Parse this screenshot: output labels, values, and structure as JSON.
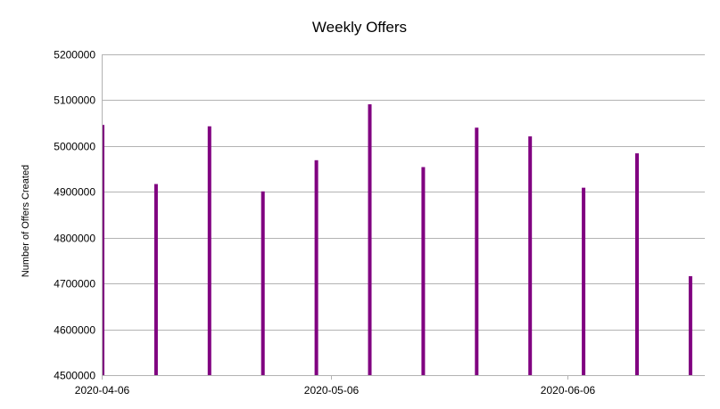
{
  "chart_data": {
    "type": "bar",
    "title": "Weekly Offers",
    "xlabel": "",
    "ylabel": "Number of Offers Created",
    "x": [
      "2020-04-06",
      "2020-04-13",
      "2020-04-20",
      "2020-04-27",
      "2020-05-04",
      "2020-05-11",
      "2020-05-18",
      "2020-05-25",
      "2020-06-01",
      "2020-06-08",
      "2020-06-15",
      "2020-06-22"
    ],
    "values": [
      5046000,
      4917000,
      5043000,
      4901000,
      4969000,
      5091000,
      4954000,
      5040000,
      5021000,
      4909000,
      4984000,
      4716000
    ],
    "xlim": [
      "2020-04-06",
      "2020-06-24"
    ],
    "ylim": [
      4500000,
      5200000
    ],
    "yticks": [
      4500000,
      4600000,
      4700000,
      4800000,
      4900000,
      5000000,
      5100000,
      5200000
    ],
    "xticks": [
      "2020-04-06",
      "2020-05-06",
      "2020-06-06"
    ],
    "grid": "horizontal",
    "legend": "none",
    "colors": {
      "bar": "#800080",
      "grid": "#b3b3b3",
      "axis": "#b3b3b3"
    }
  }
}
